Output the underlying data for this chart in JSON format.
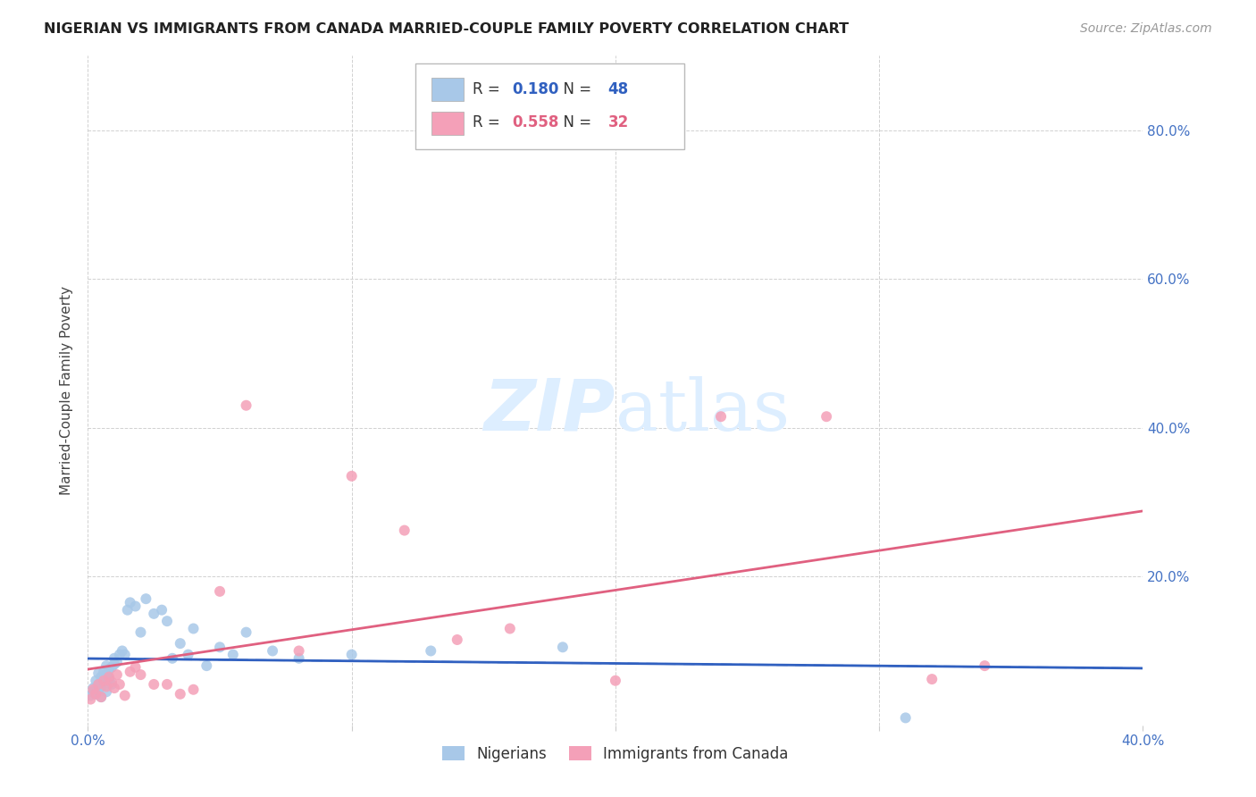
{
  "title": "NIGERIAN VS IMMIGRANTS FROM CANADA MARRIED-COUPLE FAMILY POVERTY CORRELATION CHART",
  "source": "Source: ZipAtlas.com",
  "ylabel": "Married-Couple Family Poverty",
  "xlim": [
    0.0,
    0.4
  ],
  "ylim": [
    0.0,
    0.9
  ],
  "xticks": [
    0.0,
    0.1,
    0.2,
    0.3,
    0.4
  ],
  "xtick_labels": [
    "0.0%",
    "",
    "",
    "",
    "40.0%"
  ],
  "ytick_labels_right": [
    "",
    "20.0%",
    "40.0%",
    "60.0%",
    "80.0%"
  ],
  "yticks": [
    0.0,
    0.2,
    0.4,
    0.6,
    0.8
  ],
  "r_nigerian": 0.18,
  "n_nigerian": 48,
  "r_canada": 0.558,
  "n_canada": 32,
  "nigerian_color": "#a8c8e8",
  "canada_color": "#f4a0b8",
  "nigerian_line_color": "#3060c0",
  "canada_line_color": "#e06080",
  "watermark_color": "#ddeeff",
  "background_color": "#ffffff",
  "grid_color": "#cccccc",
  "nigerian_x": [
    0.001,
    0.002,
    0.002,
    0.003,
    0.003,
    0.004,
    0.004,
    0.004,
    0.005,
    0.005,
    0.005,
    0.006,
    0.006,
    0.007,
    0.007,
    0.007,
    0.008,
    0.008,
    0.009,
    0.009,
    0.01,
    0.01,
    0.011,
    0.012,
    0.013,
    0.014,
    0.015,
    0.016,
    0.018,
    0.02,
    0.022,
    0.025,
    0.028,
    0.03,
    0.032,
    0.035,
    0.038,
    0.04,
    0.045,
    0.05,
    0.055,
    0.06,
    0.07,
    0.08,
    0.1,
    0.13,
    0.18,
    0.31
  ],
  "nigerian_y": [
    0.04,
    0.05,
    0.045,
    0.06,
    0.042,
    0.055,
    0.048,
    0.07,
    0.052,
    0.065,
    0.038,
    0.058,
    0.072,
    0.068,
    0.08,
    0.045,
    0.075,
    0.062,
    0.055,
    0.078,
    0.082,
    0.09,
    0.085,
    0.095,
    0.1,
    0.095,
    0.155,
    0.165,
    0.16,
    0.125,
    0.17,
    0.15,
    0.155,
    0.14,
    0.09,
    0.11,
    0.095,
    0.13,
    0.08,
    0.105,
    0.095,
    0.125,
    0.1,
    0.09,
    0.095,
    0.1,
    0.105,
    0.01
  ],
  "canada_x": [
    0.001,
    0.002,
    0.003,
    0.004,
    0.005,
    0.006,
    0.007,
    0.008,
    0.009,
    0.01,
    0.011,
    0.012,
    0.014,
    0.016,
    0.018,
    0.02,
    0.025,
    0.03,
    0.035,
    0.04,
    0.05,
    0.06,
    0.08,
    0.1,
    0.12,
    0.14,
    0.16,
    0.2,
    0.24,
    0.28,
    0.32,
    0.34
  ],
  "canada_y": [
    0.035,
    0.048,
    0.042,
    0.055,
    0.038,
    0.06,
    0.052,
    0.065,
    0.058,
    0.05,
    0.068,
    0.055,
    0.04,
    0.072,
    0.078,
    0.068,
    0.055,
    0.055,
    0.042,
    0.048,
    0.18,
    0.43,
    0.1,
    0.335,
    0.262,
    0.115,
    0.13,
    0.06,
    0.415,
    0.415,
    0.062,
    0.08
  ]
}
